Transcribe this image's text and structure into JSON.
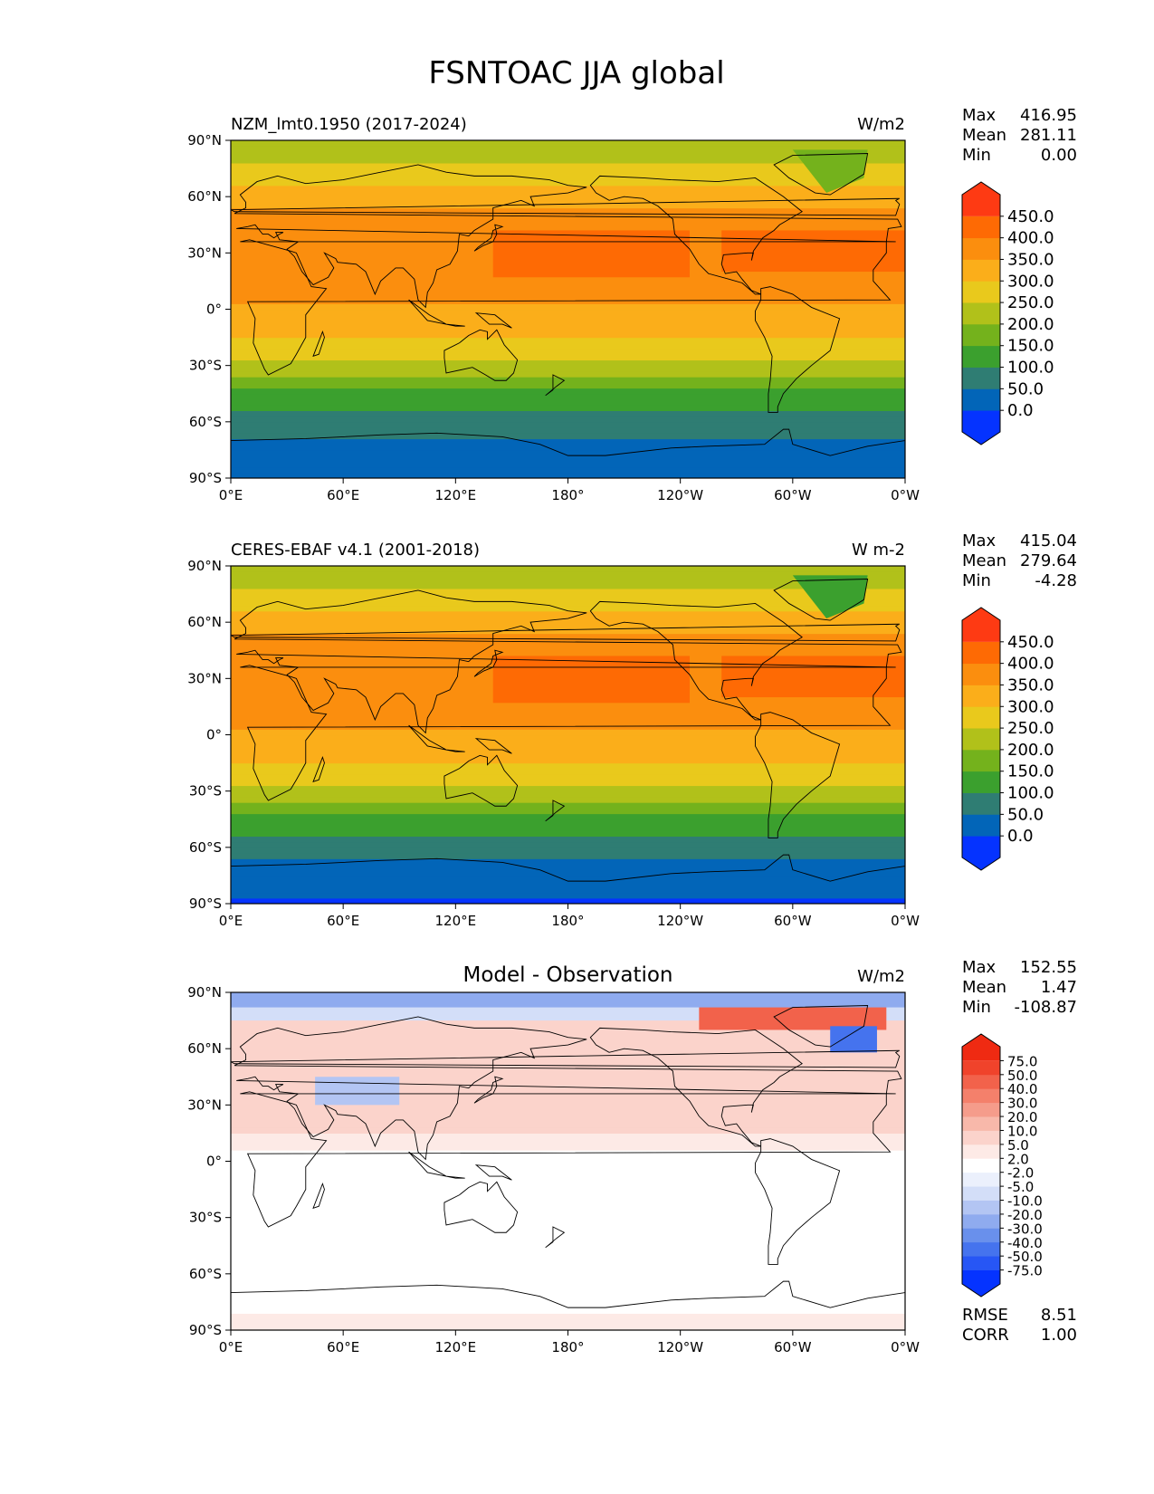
{
  "figure_title": "FSNTOAC JJA global",
  "axes": {
    "lat_ticks": [
      "90°N",
      "60°N",
      "30°N",
      "0°",
      "30°S",
      "60°S",
      "90°S"
    ],
    "lon_ticks": [
      "0°E",
      "60°E",
      "120°E",
      "180°",
      "120°W",
      "60°W",
      "0°W"
    ]
  },
  "stat_labels": {
    "max": "Max",
    "mean": "Mean",
    "min": "Min",
    "rmse": "RMSE",
    "corr": "CORR"
  },
  "panels": [
    {
      "title": "NZM_lmt0.1950 (2017-2024)",
      "units": "W/m2",
      "stats": {
        "max": "416.95",
        "mean": "281.11",
        "min": "0.00"
      },
      "colorbar": {
        "labels": [
          "450.0",
          "400.0",
          "350.0",
          "300.0",
          "250.0",
          "200.0",
          "150.0",
          "100.0",
          "50.0",
          "0.0"
        ],
        "colors": [
          "#0533ff",
          "#0265b8",
          "#2f7d73",
          "#3ba02e",
          "#74b21c",
          "#b1c11a",
          "#e9c91c",
          "#fbae1a",
          "#fb8e0e",
          "#fe6a04",
          "#fe3a13"
        ]
      }
    },
    {
      "title": "CERES-EBAF v4.1 (2001-2018)",
      "units": "W m-2",
      "stats": {
        "max": "415.04",
        "mean": "279.64",
        "min": "-4.28"
      },
      "colorbar": {
        "labels": [
          "450.0",
          "400.0",
          "350.0",
          "300.0",
          "250.0",
          "200.0",
          "150.0",
          "100.0",
          "50.0",
          "0.0"
        ],
        "colors": [
          "#0533ff",
          "#0265b8",
          "#2f7d73",
          "#3ba02e",
          "#74b21c",
          "#b1c11a",
          "#e9c91c",
          "#fbae1a",
          "#fb8e0e",
          "#fe6a04",
          "#fe3a13"
        ]
      }
    },
    {
      "title": "Model - Observation",
      "units": "W/m2",
      "stats": {
        "max": "152.55",
        "mean": "1.47",
        "min": "-108.87",
        "rmse": "8.51",
        "corr": "1.00"
      },
      "colorbar": {
        "labels": [
          "75.0",
          "50.0",
          "40.0",
          "30.0",
          "20.0",
          "10.0",
          "5.0",
          "2.0",
          "-2.0",
          "-5.0",
          "-10.0",
          "-20.0",
          "-30.0",
          "-40.0",
          "-50.0",
          "-75.0"
        ],
        "colors": [
          "#0533ff",
          "#2756f5",
          "#4573ee",
          "#6990ec",
          "#8fabef",
          "#b3c5f3",
          "#d3def8",
          "#ebf0fc",
          "#ffffff",
          "#fdeae6",
          "#fbd3cb",
          "#f8b8aa",
          "#f59c8b",
          "#f4806b",
          "#f2624b",
          "#f0432b",
          "#ef2a12"
        ]
      }
    }
  ],
  "chart_data": {
    "type": "heatmap",
    "title": "FSNTOAC JJA global",
    "description_units": "W/m2",
    "x_range_deg": [
      0,
      360
    ],
    "y_range_deg": [
      -90,
      90
    ],
    "fields": [
      {
        "name": "NZM_lmt0.1950 (2017-2024)",
        "zonal_mean_profile": {
          "lat": [
            -90,
            -75,
            -60,
            -45,
            -30,
            -15,
            0,
            15,
            30,
            45,
            60,
            75,
            90
          ],
          "value": [
            0,
            30,
            75,
            140,
            235,
            300,
            345,
            370,
            395,
            380,
            320,
            260,
            210
          ]
        },
        "stats": {
          "max": 416.95,
          "mean": 281.11,
          "min": 0.0
        }
      },
      {
        "name": "CERES-EBAF v4.1 (2001-2018)",
        "zonal_mean_profile": {
          "lat": [
            -90,
            -75,
            -60,
            -45,
            -30,
            -15,
            0,
            15,
            30,
            45,
            60,
            75,
            90
          ],
          "value": [
            -4,
            20,
            70,
            140,
            235,
            300,
            345,
            370,
            395,
            380,
            320,
            255,
            205
          ]
        },
        "stats": {
          "max": 415.04,
          "mean": 279.64,
          "min": -4.28
        }
      },
      {
        "name": "Model - Observation",
        "zonal_mean_profile": {
          "lat": [
            -90,
            -75,
            -60,
            -45,
            -30,
            -15,
            0,
            15,
            30,
            45,
            60,
            75,
            90
          ],
          "value": [
            3,
            1,
            2,
            0,
            1,
            0,
            0,
            5,
            6,
            5,
            8,
            -5,
            -10
          ]
        },
        "stats": {
          "max": 152.55,
          "mean": 1.47,
          "min": -108.87,
          "rmse": 8.51,
          "corr": 1.0
        }
      }
    ]
  }
}
